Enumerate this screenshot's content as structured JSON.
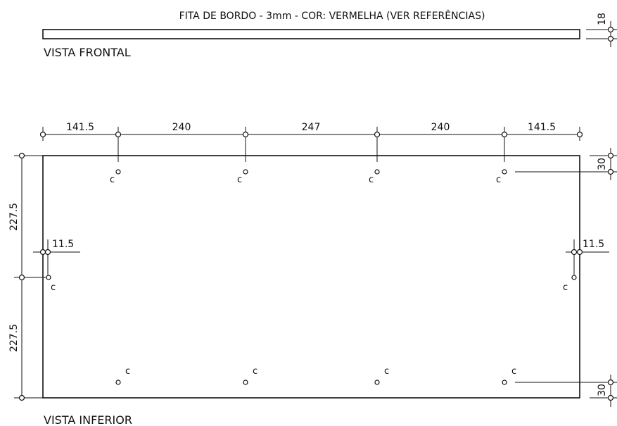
{
  "note": "FITA DE BORDO - 3mm - COR: VERMELHA (VER REFERÊNCIAS)",
  "front_view": {
    "label": "VISTA FRONTAL",
    "thickness": "18"
  },
  "bottom_view": {
    "label": "VISTA INFERIOR",
    "top_dims": [
      "141.5",
      "240",
      "247",
      "240",
      "141.5"
    ],
    "left_dims": [
      "227.5",
      "227.5"
    ],
    "edge_offset_left": "11.5",
    "edge_offset_right": "11.5",
    "right_top_offset": "30",
    "right_bottom_offset": "30",
    "hole_mark": "c"
  }
}
